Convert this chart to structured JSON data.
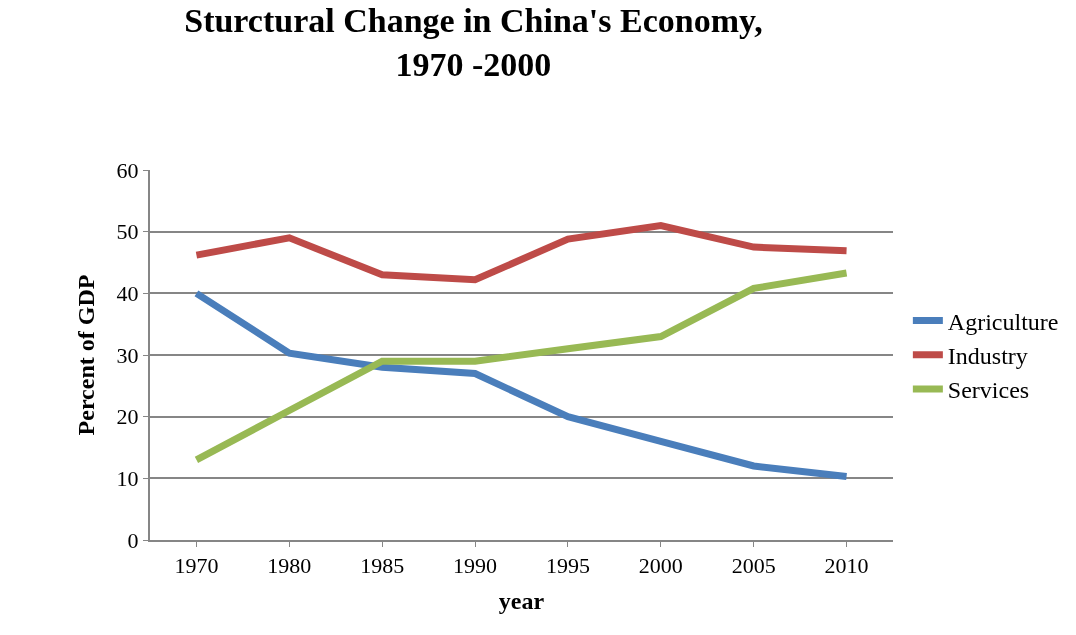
{
  "chart_data": {
    "type": "line",
    "title": "Sturctural Change in China's Economy,\n1970 -2000",
    "xlabel": "year",
    "ylabel": "Percent of GDP",
    "categories": [
      "1970",
      "1980",
      "1985",
      "1990",
      "1995",
      "2000",
      "2005",
      "2010"
    ],
    "series": [
      {
        "name": "Agriculture",
        "color": "#4a7ebb",
        "values": [
          40,
          30.3,
          28,
          27,
          20,
          16,
          12,
          10.3
        ]
      },
      {
        "name": "Industry",
        "color": "#be4b48",
        "values": [
          46.2,
          49,
          43,
          42.2,
          48.8,
          51,
          47.5,
          46.9
        ]
      },
      {
        "name": "Services",
        "color": "#98b954",
        "values": [
          13,
          21,
          29,
          29,
          31,
          33,
          40.8,
          43.3
        ]
      }
    ],
    "ylim": [
      0,
      60
    ],
    "yticks": [
      0,
      10,
      20,
      30,
      40,
      50,
      60
    ],
    "grid": "y",
    "legend": "right",
    "marker": "none",
    "line_style": "solid"
  }
}
